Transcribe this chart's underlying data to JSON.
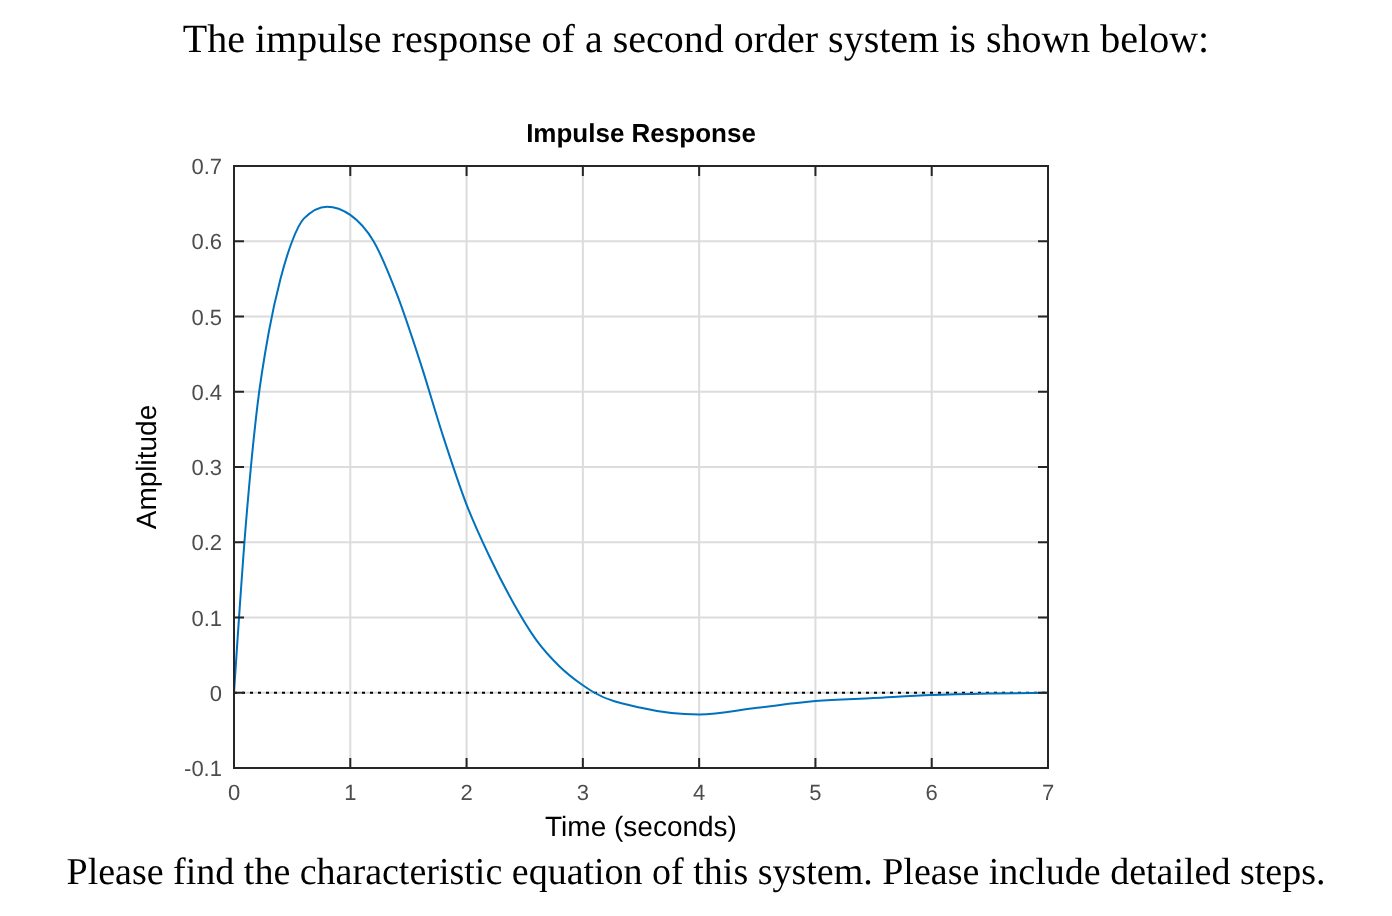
{
  "chart_data": {
    "type": "line",
    "title": "Impulse Response",
    "subtitle": "The impulse response of a second order system is shown below:",
    "xlabel": "Time (seconds)",
    "ylabel": "Amplitude",
    "annotations": [
      "Please find the characteristic equation of this system. Please include detailed steps."
    ],
    "x": [
      0,
      0.1,
      0.2,
      0.3,
      0.4,
      0.5,
      0.6,
      0.8,
      1,
      1.2,
      1.4,
      1.6,
      1.8,
      2,
      2.2,
      2.4,
      2.6,
      2.8,
      3,
      3.1,
      3.5,
      4,
      4.5,
      5,
      5.5,
      6,
      6.5,
      7
    ],
    "series": [
      {
        "color": "#0072bd",
        "values": [
          0,
          0.22,
          0.38,
          0.48,
          0.55,
          0.6,
          0.63,
          0.646,
          0.635,
          0.6,
          0.53,
          0.44,
          0.34,
          0.25,
          0.18,
          0.12,
          0.07,
          0.035,
          0.01,
          0,
          -0.02,
          -0.029,
          -0.02,
          -0.011,
          -0.007,
          -0.003,
          -0.001,
          0
        ]
      }
    ],
    "xlim": [
      0,
      7
    ],
    "xticks": [
      0,
      1,
      2,
      3,
      4,
      5,
      6,
      7
    ],
    "ylim": [
      -0.1,
      0.7
    ],
    "yticks": [
      -0.1,
      0,
      0.1,
      0.2,
      0.3,
      0.4,
      0.5,
      0.6,
      0.7
    ],
    "ref_lines": [
      {
        "axis": "y",
        "value": 0,
        "color": "#000000",
        "line_style": "dotted"
      }
    ],
    "grid": true,
    "marker": "none",
    "line_style": "solid"
  }
}
